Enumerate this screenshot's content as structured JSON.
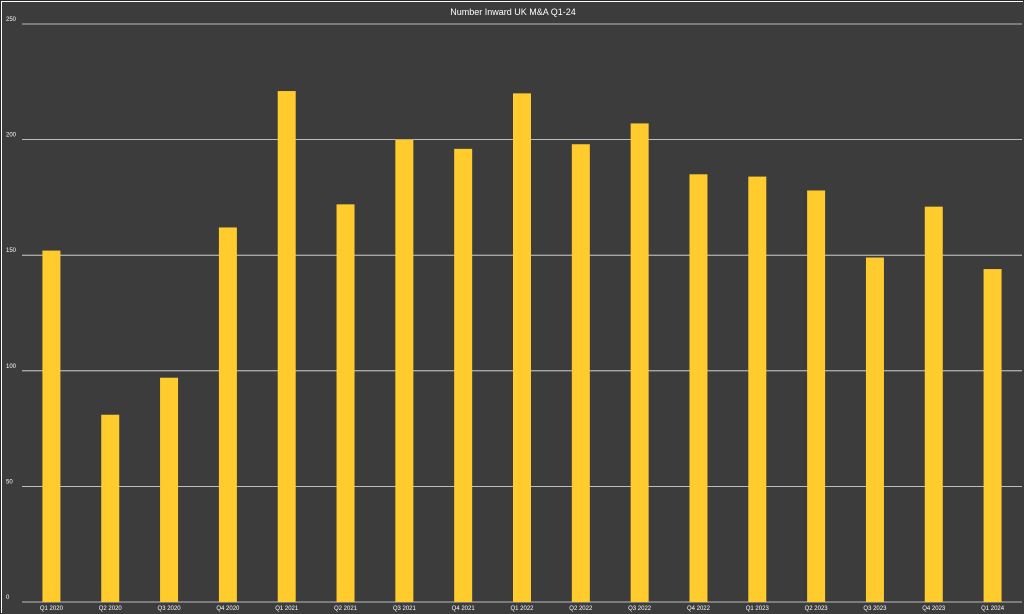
{
  "colors": {
    "background": "#3c3c3c",
    "bar": "#ffcb2d",
    "grid": "#e6e6e6",
    "text": "#ffffff"
  },
  "chart_data": {
    "type": "bar",
    "title": "Number Inward UK M&A Q1-24",
    "xlabel": "",
    "ylabel": "",
    "categories": [
      "Q1 2020",
      "Q2 2020",
      "Q3 2020",
      "Q4 2020",
      "Q1 2021",
      "Q2 2021",
      "Q3 2021",
      "Q4 2021",
      "Q1 2022",
      "Q2 2022",
      "Q3 2022",
      "Q4 2022",
      "Q1 2023",
      "Q2 2023",
      "Q3 2023",
      "Q4 2023",
      "Q1 2024"
    ],
    "values": [
      152,
      81,
      97,
      162,
      221,
      172,
      200,
      196,
      220,
      198,
      207,
      185,
      184,
      178,
      149,
      171,
      144
    ],
    "ylim": [
      0,
      250
    ],
    "yticks": [
      "0",
      "50",
      "100",
      "150",
      "200",
      "250"
    ],
    "grid": true,
    "legend": "none"
  }
}
